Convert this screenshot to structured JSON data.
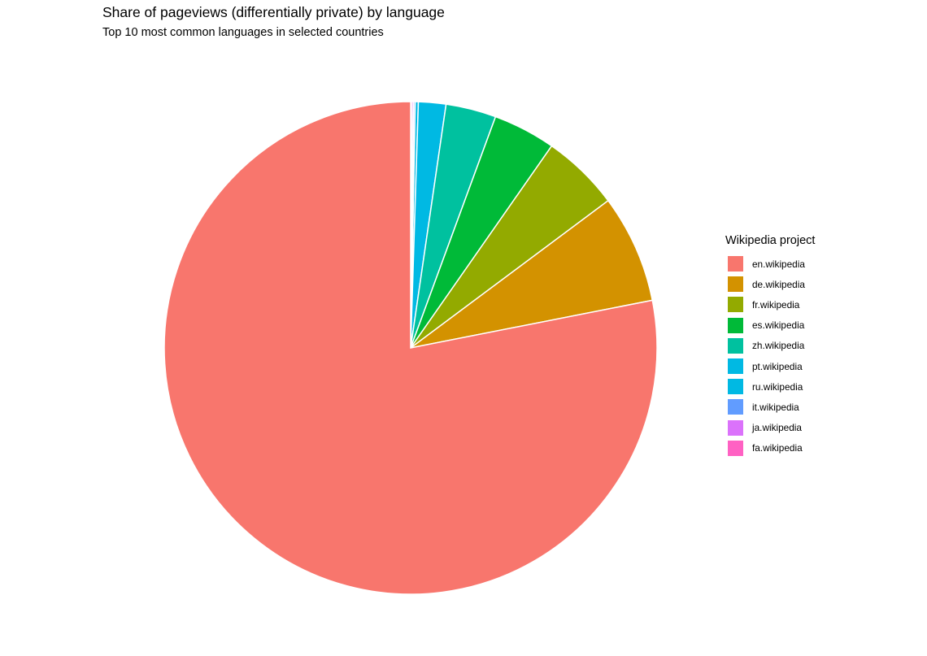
{
  "chart_data": {
    "type": "pie",
    "title": "Share of pageviews (differentially private) by language",
    "subtitle": "Top 10 most common languages in selected countries",
    "legend": {
      "title": "Wikipedia project",
      "position": "right"
    },
    "slices": [
      {
        "label": "en.wikipedia",
        "value": 78.1,
        "color": "#F8766D"
      },
      {
        "label": "de.wikipedia",
        "value": 7.1,
        "color": "#D39200"
      },
      {
        "label": "fr.wikipedia",
        "value": 5.1,
        "color": "#93AA00"
      },
      {
        "label": "es.wikipedia",
        "value": 4.1,
        "color": "#00BA38"
      },
      {
        "label": "zh.wikipedia",
        "value": 3.3,
        "color": "#00C19F"
      },
      {
        "label": "pt.wikipedia",
        "value": 1.8,
        "color": "#00B9E3"
      },
      {
        "label": "ru.wikipedia",
        "value": 0.2,
        "color": "#00B9E3"
      },
      {
        "label": "it.wikipedia",
        "value": 0.1,
        "color": "#619CFF"
      },
      {
        "label": "ja.wikipedia",
        "value": 0.1,
        "color": "#DB72FB"
      },
      {
        "label": "fa.wikipedia",
        "value": 0.1,
        "color": "#FF61C3"
      }
    ],
    "legend_colors": [
      "#F8766D",
      "#D39200",
      "#93AA00",
      "#00BA38",
      "#00C19F",
      "#00B9E3",
      "#00B9E3",
      "#619CFF",
      "#DB72FB",
      "#FF61C3"
    ]
  }
}
